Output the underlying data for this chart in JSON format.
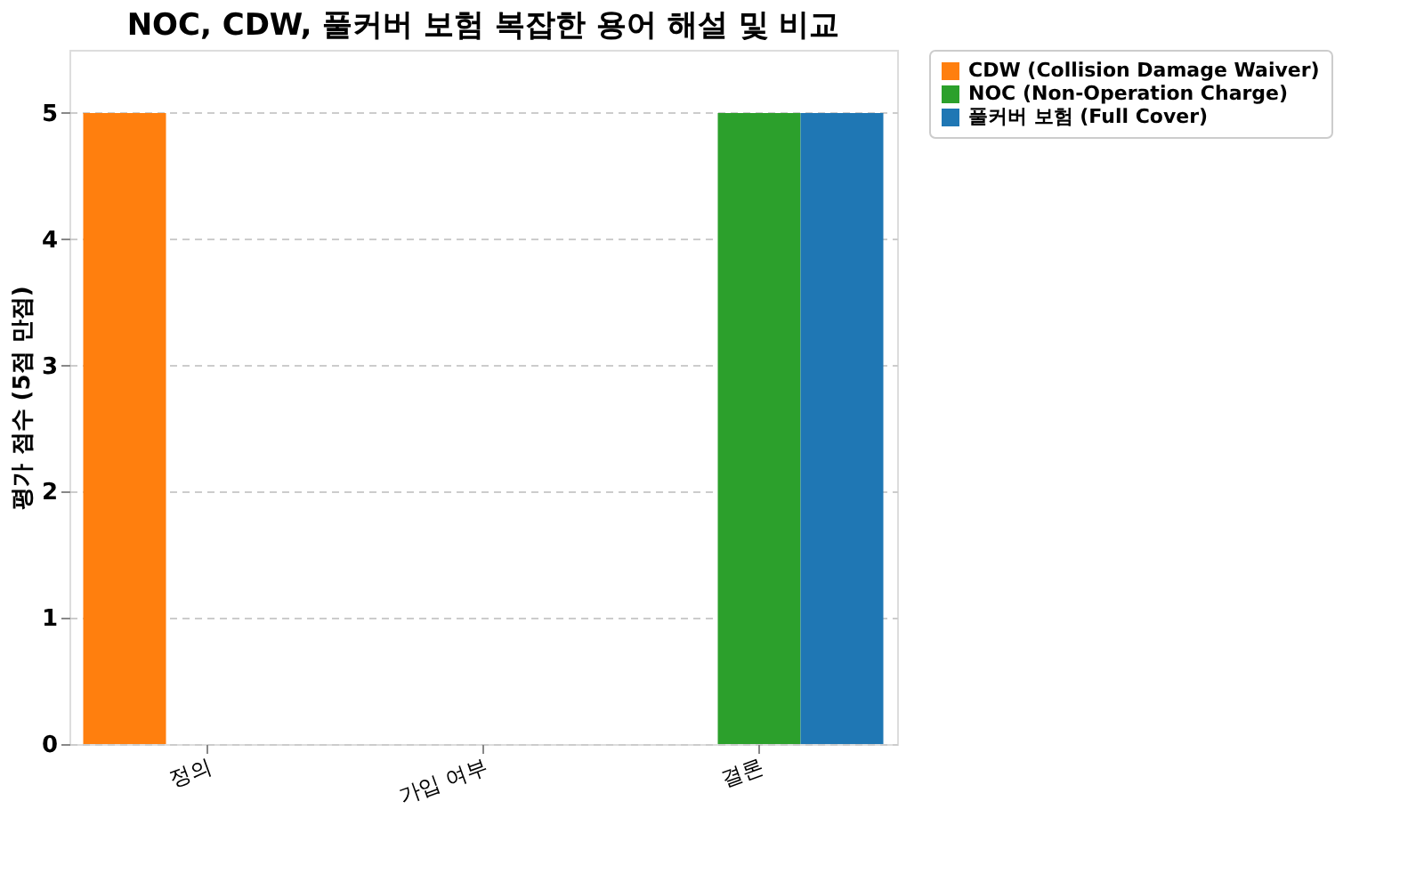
{
  "chart_data": {
    "type": "bar",
    "title": "NOC, CDW, 풀커버 보험 복잡한 용어 해설 및 비교",
    "ylabel": "평가 점수 (5점 만점)",
    "categories": [
      "정의",
      "가입 여부",
      "결론"
    ],
    "series": [
      {
        "name": "CDW (Collision Damage Waiver)",
        "color": "#ff7f0e",
        "values": [
          5,
          0,
          0
        ]
      },
      {
        "name": "NOC (Non-Operation Charge)",
        "color": "#2ca02c",
        "values": [
          0,
          0,
          5
        ]
      },
      {
        "name": "풀커버 보험 (Full Cover)",
        "color": "#1f77b4",
        "values": [
          0,
          0,
          5
        ]
      }
    ],
    "ylim": [
      0,
      5.5
    ],
    "yticks": [
      0,
      1,
      2,
      3,
      4,
      5
    ],
    "grid": "y",
    "legend": "top right"
  }
}
